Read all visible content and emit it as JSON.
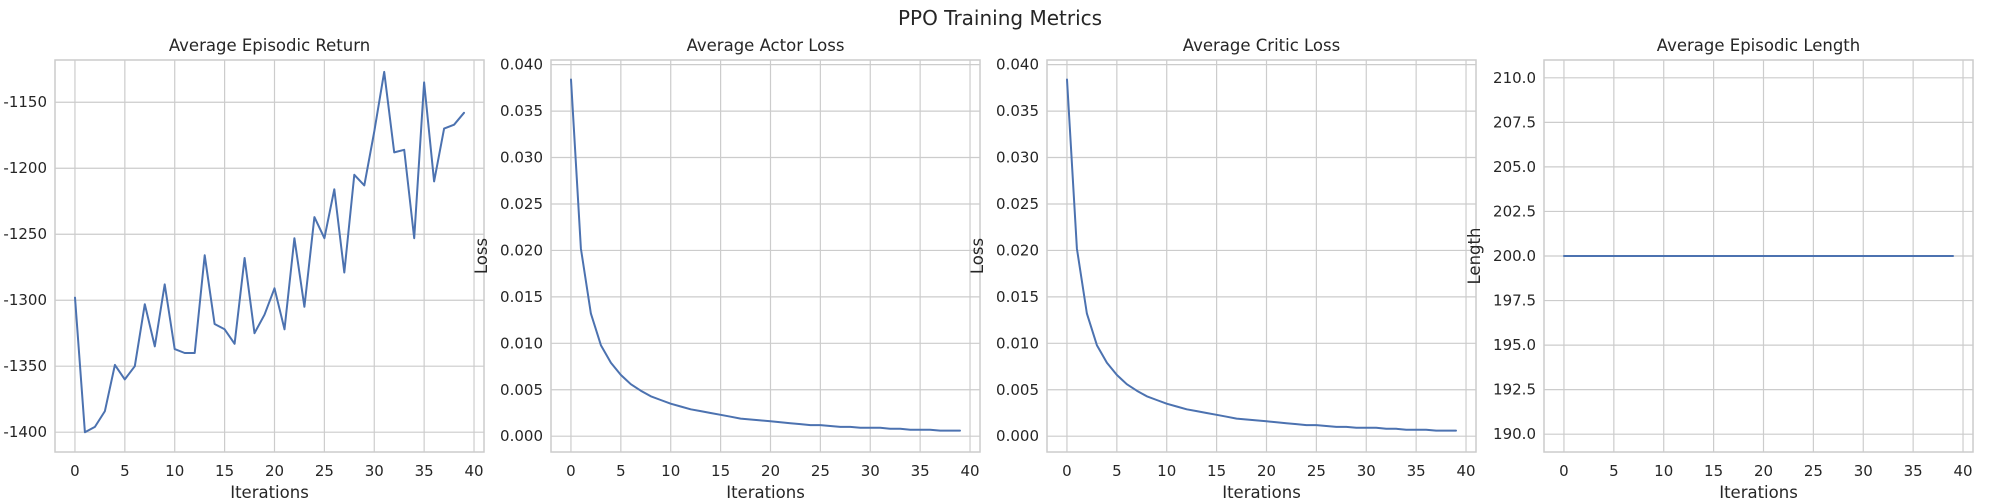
{
  "figure": {
    "suptitle": "PPO Training Metrics",
    "line_color": "#4c72b0",
    "grid_color": "#cccccc"
  },
  "chart_data": [
    {
      "type": "line",
      "title": "Average Episodic Return",
      "xlabel": "Iterations",
      "ylabel": "",
      "xlim": [
        -2,
        41
      ],
      "ylim": [
        -1415,
        -1118
      ],
      "xticks": [
        0,
        5,
        10,
        15,
        20,
        25,
        30,
        35,
        40
      ],
      "yticks": [
        -1400,
        -1350,
        -1300,
        -1250,
        -1200,
        -1150
      ],
      "ytick_labels": [
        "-1400",
        "-1350",
        "-1300",
        "-1250",
        "-1200",
        "-1150"
      ],
      "grid": true,
      "series": [
        {
          "x": [
            0,
            1,
            2,
            3,
            4,
            5,
            6,
            7,
            8,
            9,
            10,
            11,
            12,
            13,
            14,
            15,
            16,
            17,
            18,
            19,
            20,
            21,
            22,
            23,
            24,
            25,
            26,
            27,
            28,
            29,
            30,
            31,
            32,
            33,
            34,
            35,
            36,
            37,
            38,
            39
          ],
          "y": [
            -1298,
            -1400,
            -1396,
            -1384,
            -1349,
            -1360,
            -1350,
            -1303,
            -1335,
            -1288,
            -1337,
            -1340,
            -1340,
            -1266,
            -1318,
            -1322,
            -1333,
            -1268,
            -1325,
            -1311,
            -1291,
            -1322,
            -1253,
            -1305,
            -1237,
            -1253,
            -1216,
            -1279,
            -1205,
            -1213,
            -1172,
            -1127,
            -1188,
            -1186,
            -1253,
            -1135,
            -1210,
            -1170,
            -1167,
            -1158
          ]
        }
      ]
    },
    {
      "type": "line",
      "title": "Average Actor Loss",
      "xlabel": "Iterations",
      "ylabel": "Loss",
      "xlim": [
        -2,
        41
      ],
      "ylim": [
        -0.0017,
        0.0405
      ],
      "xticks": [
        0,
        5,
        10,
        15,
        20,
        25,
        30,
        35,
        40
      ],
      "yticks": [
        0.0,
        0.005,
        0.01,
        0.015,
        0.02,
        0.025,
        0.03,
        0.035,
        0.04
      ],
      "ytick_labels": [
        "0.000",
        "0.005",
        "0.010",
        "0.015",
        "0.020",
        "0.025",
        "0.030",
        "0.035",
        "0.040"
      ],
      "grid": true,
      "series": [
        {
          "x": [
            0,
            1,
            2,
            3,
            4,
            5,
            6,
            7,
            8,
            9,
            10,
            11,
            12,
            13,
            14,
            15,
            16,
            17,
            18,
            19,
            20,
            21,
            22,
            23,
            24,
            25,
            26,
            27,
            28,
            29,
            30,
            31,
            32,
            33,
            34,
            35,
            36,
            37,
            38,
            39
          ],
          "y": [
            0.0384,
            0.0202,
            0.0132,
            0.0098,
            0.0079,
            0.0066,
            0.0056,
            0.0049,
            0.0043,
            0.0039,
            0.0035,
            0.0032,
            0.0029,
            0.0027,
            0.0025,
            0.0023,
            0.0021,
            0.0019,
            0.0018,
            0.0017,
            0.0016,
            0.0015,
            0.0014,
            0.0013,
            0.0012,
            0.0012,
            0.0011,
            0.001,
            0.001,
            0.0009,
            0.0009,
            0.0009,
            0.0008,
            0.0008,
            0.0007,
            0.0007,
            0.0007,
            0.0006,
            0.0006,
            0.0006
          ]
        }
      ]
    },
    {
      "type": "line",
      "title": "Average Critic Loss",
      "xlabel": "Iterations",
      "ylabel": "Loss",
      "xlim": [
        -2,
        41
      ],
      "ylim": [
        -0.0017,
        0.0405
      ],
      "xticks": [
        0,
        5,
        10,
        15,
        20,
        25,
        30,
        35,
        40
      ],
      "yticks": [
        0.0,
        0.005,
        0.01,
        0.015,
        0.02,
        0.025,
        0.03,
        0.035,
        0.04
      ],
      "ytick_labels": [
        "0.000",
        "0.005",
        "0.010",
        "0.015",
        "0.020",
        "0.025",
        "0.030",
        "0.035",
        "0.040"
      ],
      "grid": true,
      "series": [
        {
          "x": [
            0,
            1,
            2,
            3,
            4,
            5,
            6,
            7,
            8,
            9,
            10,
            11,
            12,
            13,
            14,
            15,
            16,
            17,
            18,
            19,
            20,
            21,
            22,
            23,
            24,
            25,
            26,
            27,
            28,
            29,
            30,
            31,
            32,
            33,
            34,
            35,
            36,
            37,
            38,
            39
          ],
          "y": [
            0.0384,
            0.0202,
            0.0132,
            0.0098,
            0.0079,
            0.0066,
            0.0056,
            0.0049,
            0.0043,
            0.0039,
            0.0035,
            0.0032,
            0.0029,
            0.0027,
            0.0025,
            0.0023,
            0.0021,
            0.0019,
            0.0018,
            0.0017,
            0.0016,
            0.0015,
            0.0014,
            0.0013,
            0.0012,
            0.0012,
            0.0011,
            0.001,
            0.001,
            0.0009,
            0.0009,
            0.0009,
            0.0008,
            0.0008,
            0.0007,
            0.0007,
            0.0007,
            0.0006,
            0.0006,
            0.0006
          ]
        }
      ]
    },
    {
      "type": "line",
      "title": "Average Episodic Length",
      "xlabel": "Iterations",
      "ylabel": "Length",
      "xlim": [
        -2,
        41
      ],
      "ylim": [
        189.0,
        211.0
      ],
      "xticks": [
        0,
        5,
        10,
        15,
        20,
        25,
        30,
        35,
        40
      ],
      "yticks": [
        190.0,
        192.5,
        195.0,
        197.5,
        200.0,
        202.5,
        205.0,
        207.5,
        210.0
      ],
      "ytick_labels": [
        "190.0",
        "192.5",
        "195.0",
        "197.5",
        "200.0",
        "202.5",
        "205.0",
        "207.5",
        "210.0"
      ],
      "grid": true,
      "series": [
        {
          "x": [
            0,
            1,
            2,
            3,
            4,
            5,
            6,
            7,
            8,
            9,
            10,
            11,
            12,
            13,
            14,
            15,
            16,
            17,
            18,
            19,
            20,
            21,
            22,
            23,
            24,
            25,
            26,
            27,
            28,
            29,
            30,
            31,
            32,
            33,
            34,
            35,
            36,
            37,
            38,
            39
          ],
          "y": [
            200,
            200,
            200,
            200,
            200,
            200,
            200,
            200,
            200,
            200,
            200,
            200,
            200,
            200,
            200,
            200,
            200,
            200,
            200,
            200,
            200,
            200,
            200,
            200,
            200,
            200,
            200,
            200,
            200,
            200,
            200,
            200,
            200,
            200,
            200,
            200,
            200,
            200,
            200,
            200
          ]
        }
      ]
    }
  ]
}
